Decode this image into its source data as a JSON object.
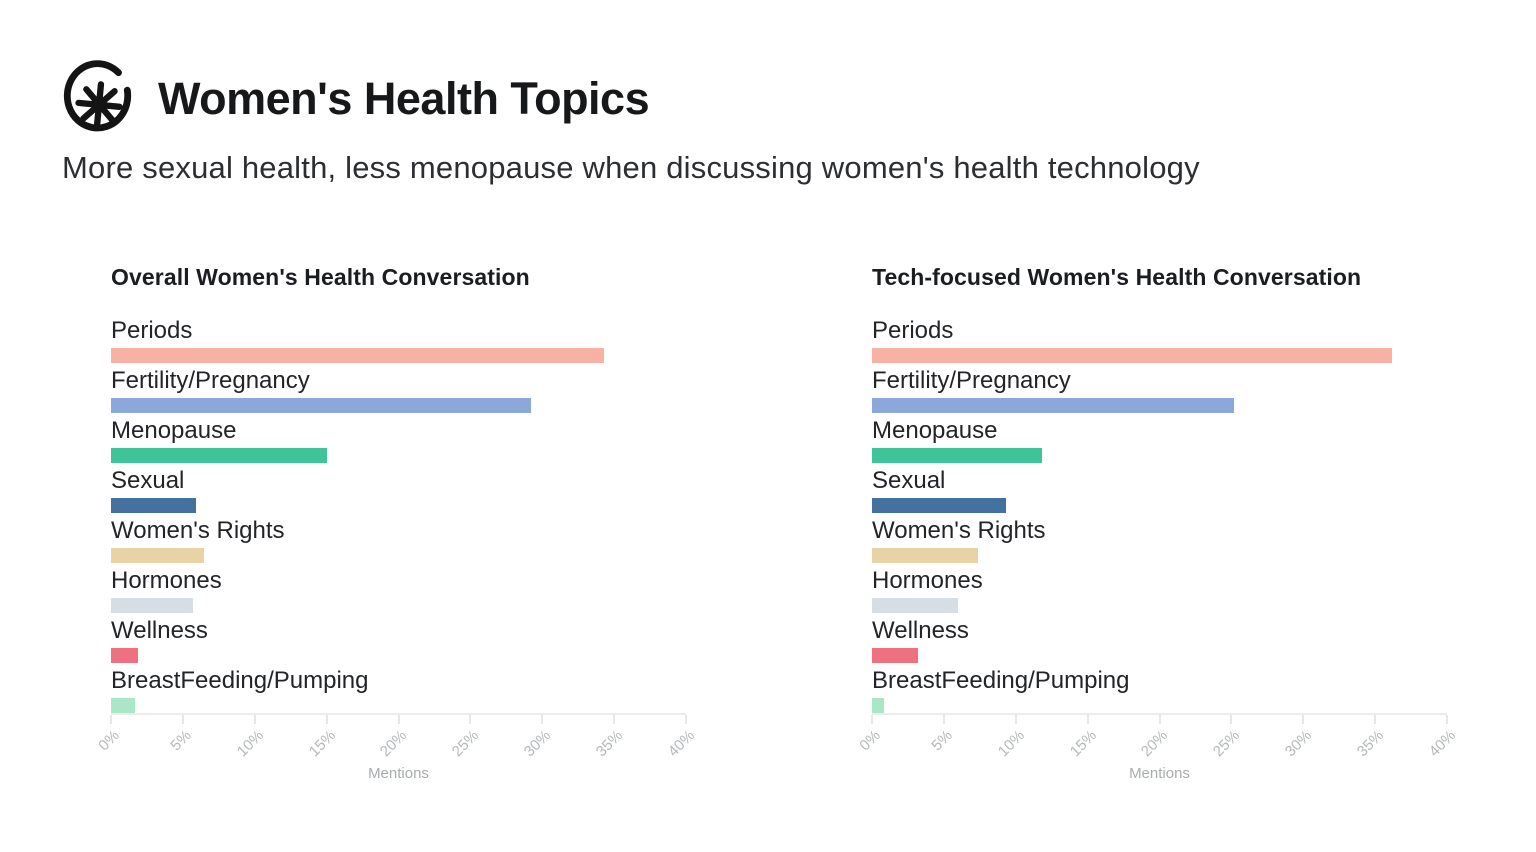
{
  "header": {
    "logo_icon": "hand-drawn-asterisk-in-circle",
    "title": "Women's Health Topics",
    "subtitle": "More sexual health, less menopause when discussing women's health technology"
  },
  "colors": {
    "axis_line": "#ececec",
    "tick_label": "#b5b8ba",
    "axis_title": "#a9acae",
    "title_text": "#17181a",
    "category_text": "#222427",
    "logo_ink": "#141414"
  },
  "chart_data": [
    {
      "type": "bar",
      "orientation": "horizontal",
      "title": "Overall Women's Health Conversation",
      "xlabel": "Mentions",
      "unit": "%",
      "xlim": [
        0,
        40
      ],
      "tick_labels": [
        "0%",
        "5%",
        "10%",
        "15%",
        "20%",
        "25%",
        "30%",
        "35%",
        "40%"
      ],
      "grid": false,
      "categories": [
        "Periods",
        "Fertility/Pregnancy",
        "Menopause",
        "Sexual",
        "Women's Rights",
        "Hormones",
        "Wellness",
        "BreastFeeding/Pumping"
      ],
      "values": [
        34.3,
        29.2,
        15.0,
        5.9,
        6.5,
        5.7,
        1.9,
        1.7
      ],
      "bar_colors": [
        "#f8b2a3",
        "#8ca8db",
        "#3fc49a",
        "#44719d",
        "#e8d3a6",
        "#d6dee5",
        "#ef707e",
        "#aae7c7"
      ]
    },
    {
      "type": "bar",
      "orientation": "horizontal",
      "title": "Tech-focused Women's Health Conversation",
      "xlabel": "Mentions",
      "unit": "%",
      "xlim": [
        0,
        40
      ],
      "tick_labels": [
        "0%",
        "5%",
        "10%",
        "15%",
        "20%",
        "25%",
        "30%",
        "35%",
        "40%"
      ],
      "grid": false,
      "categories": [
        "Periods",
        "Fertility/Pregnancy",
        "Menopause",
        "Sexual",
        "Women's Rights",
        "Hormones",
        "Wellness",
        "BreastFeeding/Pumping"
      ],
      "values": [
        36.2,
        25.2,
        11.8,
        9.3,
        7.4,
        6.0,
        3.2,
        0.8
      ],
      "bar_colors": [
        "#f8b2a3",
        "#8ca8db",
        "#3fc49a",
        "#44719d",
        "#e8d3a6",
        "#d6dee5",
        "#ef707e",
        "#aae7c7"
      ]
    }
  ]
}
